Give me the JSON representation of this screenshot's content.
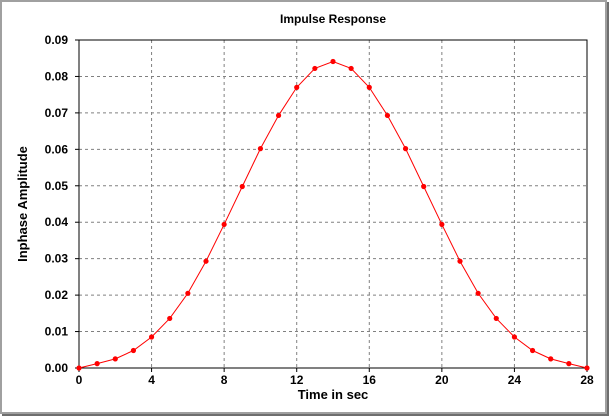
{
  "chart_data": {
    "type": "line",
    "title": "Impulse Response",
    "xlabel": "Time in sec",
    "ylabel": "Inphase Amplitude",
    "xlim": [
      0,
      28
    ],
    "ylim": [
      0,
      0.09
    ],
    "xticks": [
      "0",
      "4",
      "8",
      "12",
      "16",
      "20",
      "24",
      "28"
    ],
    "yticks": [
      "0.00",
      "0.01",
      "0.02",
      "0.03",
      "0.04",
      "0.05",
      "0.06",
      "0.07",
      "0.08",
      "0.09"
    ],
    "grid": true,
    "series": [
      {
        "color": "#ff0000",
        "marker": "circle",
        "x": [
          0,
          1,
          2,
          3,
          4,
          5,
          6,
          7,
          8,
          9,
          10,
          11,
          12,
          13,
          14,
          15,
          16,
          17,
          18,
          19,
          20,
          21,
          22,
          23,
          24,
          25,
          26,
          27,
          28
        ],
        "y": [
          0.0,
          0.0012,
          0.0025,
          0.0048,
          0.0085,
          0.0136,
          0.0205,
          0.0293,
          0.0394,
          0.0498,
          0.0602,
          0.0693,
          0.077,
          0.0822,
          0.0841,
          0.0822,
          0.077,
          0.0693,
          0.0602,
          0.0498,
          0.0394,
          0.0293,
          0.0205,
          0.0136,
          0.0085,
          0.0048,
          0.0025,
          0.0012,
          0.0
        ]
      }
    ]
  }
}
